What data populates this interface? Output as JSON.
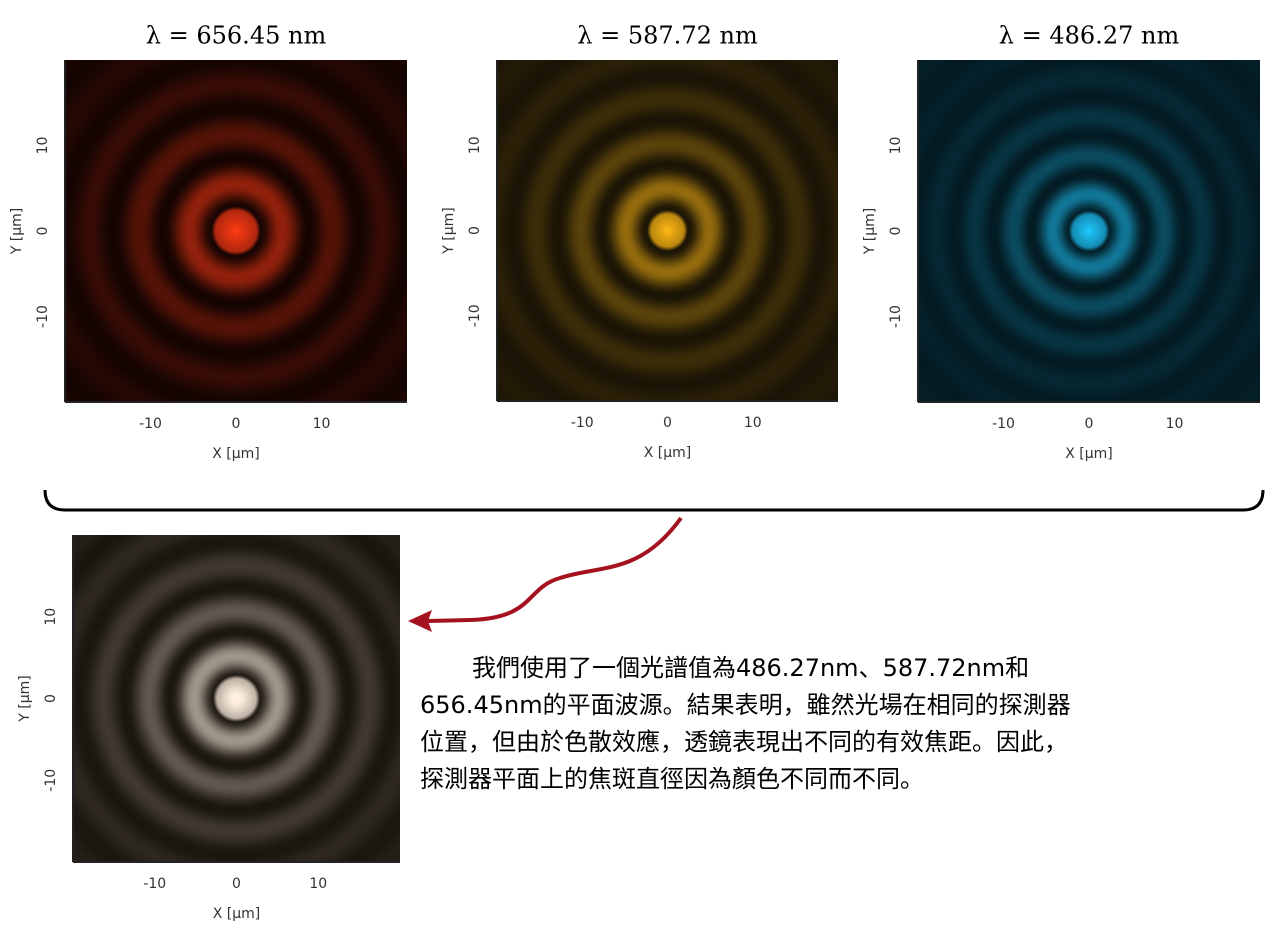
{
  "panels": [
    {
      "title": "λ = 656.45 nm",
      "x_label": "X [µm]",
      "y_label": "Y [µm]",
      "xticks": [
        "-10",
        "0",
        "10"
      ],
      "yticks": [
        "10",
        "0",
        "-10"
      ],
      "color": "#ff3a14"
    },
    {
      "title": "λ = 587.72 nm",
      "x_label": "X [µm]",
      "y_label": "Y [µm]",
      "xticks": [
        "-10",
        "0",
        "10"
      ],
      "yticks": [
        "10",
        "0",
        "-10"
      ],
      "color": "#ffb814"
    },
    {
      "title": "λ = 486.27 nm",
      "x_label": "X [µm]",
      "y_label": "Y [µm]",
      "xticks": [
        "-10",
        "0",
        "10"
      ],
      "yticks": [
        "10",
        "0",
        "-10"
      ],
      "color": "#1ec8ff"
    },
    {
      "x_label": "X [µm]",
      "y_label": "Y [µm]",
      "xticks": [
        "-10",
        "0",
        "10"
      ],
      "yticks": [
        "10",
        "0",
        "-10"
      ],
      "color": "#fff0e0"
    }
  ],
  "text": "我們使用了一個光譜值為486.27nm、587.72nm和656.45nm的平面波源。結果表明，雖然光場在相同的探測器位置，但由於色散效應，透鏡表現出不同的有效焦距。因此，探測器平面上的焦斑直徑因為顏色不同而不同。"
}
